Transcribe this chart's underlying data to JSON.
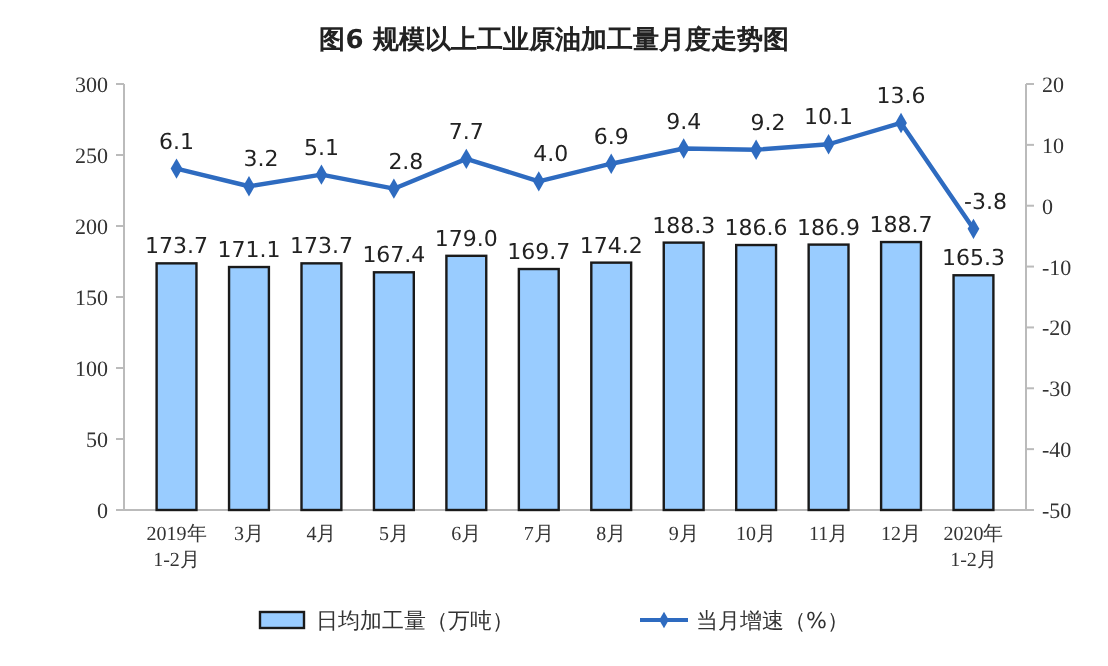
{
  "chart_data": {
    "type": "bar",
    "title": "图6  规模以上工业原油加工量月度走势图",
    "categories": [
      "2019年\n1-2月",
      "3月",
      "4月",
      "5月",
      "6月",
      "7月",
      "8月",
      "9月",
      "10月",
      "11月",
      "12月",
      "2020年\n1-2月"
    ],
    "series": [
      {
        "name": "日均加工量（万吨）",
        "color": "#99ccff",
        "values": [
          173.7,
          171.1,
          173.7,
          167.4,
          179.0,
          169.7,
          174.2,
          188.3,
          186.6,
          186.9,
          188.7,
          165.3
        ],
        "value_labels": [
          "173.7",
          "171.1",
          "173.7",
          "167.4",
          "179.0",
          "169.7",
          "174.2",
          "188.3",
          "186.6",
          "186.9",
          "188.7",
          "165.3"
        ]
      },
      {
        "name": "当月增速（%）",
        "type": "line",
        "axis": "y2",
        "color": "#2e6bc0",
        "marker": "diamond",
        "values": [
          6.1,
          3.2,
          5.1,
          2.8,
          7.7,
          4.0,
          6.9,
          9.4,
          9.2,
          10.1,
          13.6,
          -3.8
        ],
        "value_labels": [
          "6.1",
          "3.2",
          "5.1",
          "2.8",
          "7.7",
          "4.0",
          "6.9",
          "9.4",
          "9.2",
          "10.1",
          "13.6",
          "-3.8"
        ]
      }
    ],
    "ylim": [
      0,
      300
    ],
    "yticks": [
      0,
      50,
      100,
      150,
      200,
      250,
      300
    ],
    "y2lim": [
      -50,
      20
    ],
    "y2ticks": [
      -50,
      -40,
      -30,
      -20,
      -10,
      0,
      10,
      20
    ],
    "grid": false,
    "legend": "bottom"
  }
}
